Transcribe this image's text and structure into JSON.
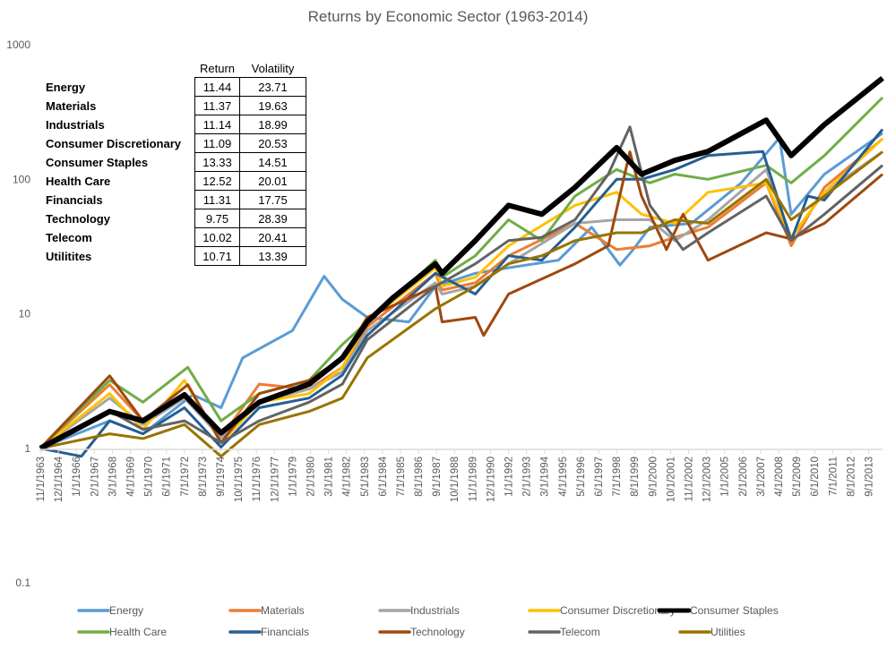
{
  "chart_data": {
    "type": "line",
    "title": "Returns by Economic Sector (1963-2014)",
    "xlabel": "",
    "ylabel": "",
    "yscale": "log",
    "ylim": [
      0.1,
      1000
    ],
    "yticks": [
      "1000",
      "100",
      "10",
      "1",
      "0.1"
    ],
    "ytick_values": [
      1000,
      100,
      10,
      1,
      0.1
    ],
    "xlim": [
      1963.83,
      2014.5
    ],
    "xtick_labels": [
      "11/1/1963",
      "12/1/1964",
      "1/1/1966",
      "2/1/1967",
      "3/1/1968",
      "4/1/1969",
      "5/1/1970",
      "6/1/1971",
      "7/1/1972",
      "8/1/1973",
      "9/1/1974",
      "10/1/1975",
      "11/1/1976",
      "12/1/1977",
      "1/1/1979",
      "2/1/1980",
      "3/1/1981",
      "4/1/1982",
      "5/1/1983",
      "6/1/1984",
      "7/1/1985",
      "8/1/1986",
      "9/1/1987",
      "10/1/1988",
      "11/1/1989",
      "12/1/1990",
      "1/1/1992",
      "2/1/1993",
      "3/1/1994",
      "4/1/1995",
      "5/1/1996",
      "6/1/1997",
      "7/1/1998",
      "8/1/1999",
      "9/1/2000",
      "10/1/2001",
      "11/1/2002",
      "12/1/2003",
      "1/1/2005",
      "2/1/2006",
      "3/1/2007",
      "4/1/2008",
      "5/1/2009",
      "6/1/2010",
      "7/1/2011",
      "8/1/2012",
      "9/1/2013"
    ],
    "legend_position": "bottom",
    "grid": false,
    "series": [
      {
        "name": "Energy",
        "color": "#5B9BD5",
        "x": [
          1963.83,
          1968,
          1970,
          1973,
          1974.7,
          1976,
          1979,
          1980.9,
          1982,
          1983.5,
          1986,
          1987.6,
          1990,
          1992,
          1995,
          1997,
          1998.7,
          1999.5,
          2000.5,
          2003,
          2006,
          2008.3,
          2009,
          2011,
          2014.5
        ],
        "values": [
          1,
          1.6,
          1.28,
          2.5,
          2,
          4.7,
          7.5,
          19,
          12.8,
          9.4,
          8.7,
          16,
          20,
          22,
          25,
          44,
          23,
          30,
          44,
          47,
          94,
          203,
          55,
          109,
          220
        ]
      },
      {
        "name": "Materials",
        "color": "#ED7D31",
        "x": [
          1963.83,
          1968,
          1970,
          1972.5,
          1974.7,
          1977,
          1980,
          1982,
          1983.5,
          1987.6,
          1988,
          1990,
          1992,
          1996,
          1998.5,
          2000.5,
          2002,
          2004,
          2007.5,
          2009,
          2011,
          2014.5
        ],
        "values": [
          1,
          2.97,
          1.6,
          2.5,
          1.2,
          3,
          2.75,
          4,
          8,
          20,
          15,
          17,
          27,
          47,
          30,
          32,
          37,
          44,
          94,
          32,
          87,
          200
        ]
      },
      {
        "name": "Industrials",
        "color": "#A5A5A5",
        "x": [
          1963.83,
          1968,
          1970,
          1972.5,
          1974.7,
          1977,
          1980,
          1982,
          1983.5,
          1987.6,
          1988,
          1990,
          1992,
          1996,
          1998.5,
          2000.5,
          2002,
          2004,
          2007.5,
          2009,
          2011,
          2014.5
        ],
        "values": [
          1,
          2.36,
          1.5,
          2.36,
          1.2,
          2.2,
          2.75,
          3.7,
          7.5,
          17,
          14,
          16,
          23.5,
          47,
          50,
          50,
          35,
          50,
          118,
          37,
          80,
          160
        ]
      },
      {
        "name": "Consumer Discretionary",
        "color": "#FFC000",
        "x": [
          1963.83,
          1968,
          1970,
          1972.5,
          1974.7,
          1977,
          1980,
          1982,
          1983.5,
          1987.6,
          1988,
          1990,
          1992,
          1996,
          1998.5,
          2000,
          2002,
          2004,
          2007.5,
          2009,
          2011,
          2014.5
        ],
        "values": [
          1,
          2.55,
          1.38,
          3.2,
          1.1,
          2.2,
          2.55,
          4,
          8.7,
          22,
          16,
          18.7,
          32,
          64,
          80,
          55,
          47,
          80,
          94,
          37,
          80,
          200
        ]
      },
      {
        "name": "Consumer Staples",
        "color": "#000000",
        "x": [
          1963.83,
          1968,
          1970,
          1972.5,
          1974.7,
          1977,
          1980,
          1982,
          1983.5,
          1985,
          1987.6,
          1988,
          1990,
          1992,
          1994,
          1996,
          1998.5,
          2000,
          2002,
          2004,
          2007.5,
          2009,
          2011,
          2014.5
        ],
        "values": [
          1,
          1.88,
          1.6,
          2.5,
          1.3,
          2.2,
          3,
          4.7,
          8.7,
          13,
          23.5,
          20,
          35,
          64,
          55,
          87,
          172,
          109,
          138,
          161,
          275,
          150,
          255,
          565
        ]
      },
      {
        "name": "Health Care",
        "color": "#70AD47",
        "x": [
          1963.83,
          1968,
          1970,
          1972.7,
          1974.7,
          1977,
          1980,
          1982,
          1983.5,
          1987.6,
          1988,
          1990,
          1992,
          1994,
          1996,
          1998.5,
          2000.5,
          2002,
          2004,
          2007.5,
          2009,
          2011,
          2014.5
        ],
        "values": [
          1,
          3.2,
          2.2,
          4,
          1.6,
          2.55,
          3.2,
          5.9,
          8.7,
          25,
          18.7,
          27,
          50,
          35,
          75,
          118,
          94,
          109,
          100,
          127,
          94,
          150,
          405
        ]
      },
      {
        "name": "Financials",
        "color": "#255E91",
        "x": [
          1963.83,
          1966.3,
          1968,
          1970,
          1972.5,
          1974.7,
          1977,
          1980,
          1982,
          1983.5,
          1987.6,
          1990,
          1992,
          1994,
          1996,
          1998.5,
          2000,
          2002,
          2004,
          2007.3,
          2009,
          2010,
          2011,
          2014.5
        ],
        "values": [
          1,
          0.87,
          1.6,
          1.28,
          2,
          1.02,
          2,
          2.36,
          3.5,
          6.9,
          20,
          14,
          27,
          25,
          44,
          100,
          100,
          118,
          150,
          161,
          35,
          75,
          70,
          235
        ]
      },
      {
        "name": "Technology",
        "color": "#9E480E",
        "x": [
          1963.83,
          1968,
          1970,
          1972.7,
          1974.7,
          1977,
          1980,
          1982,
          1983.5,
          1987.6,
          1988,
          1990,
          1990.5,
          1992,
          1996,
          1998,
          1999.3,
          2000,
          2001.5,
          2002.5,
          2004,
          2007.5,
          2009,
          2011,
          2014.5
        ],
        "values": [
          1,
          3.46,
          1.6,
          2.97,
          1.1,
          2.55,
          3.2,
          4.7,
          9.4,
          16,
          8.7,
          9.4,
          6.9,
          14,
          23.5,
          32,
          160,
          75,
          30,
          55,
          25,
          40,
          36,
          47,
          109
        ]
      },
      {
        "name": "Telecom",
        "color": "#636363",
        "x": [
          1963.83,
          1968,
          1970,
          1972.5,
          1974.7,
          1977,
          1980,
          1982,
          1983.5,
          1987.6,
          1990,
          1992,
          1994,
          1996,
          1998,
          1999.3,
          2000.5,
          2002.5,
          2004,
          2007.5,
          2009,
          2011,
          2014.5
        ],
        "values": [
          1,
          1.9,
          1.38,
          1.6,
          1.1,
          1.6,
          2.2,
          3,
          6.4,
          16,
          23.5,
          35,
          37,
          50,
          109,
          245,
          64,
          30,
          40,
          75,
          35,
          55,
          127
        ]
      },
      {
        "name": "Utilities",
        "color": "#997300",
        "x": [
          1963.83,
          1968,
          1970,
          1972.5,
          1974.7,
          1977,
          1980,
          1982,
          1983.5,
          1987.6,
          1990,
          1992,
          1994,
          1996,
          1998.5,
          2000,
          2002,
          2004,
          2007.5,
          2009,
          2011,
          2014.5
        ],
        "values": [
          1,
          1.28,
          1.18,
          1.5,
          0.87,
          1.5,
          1.88,
          2.36,
          4.7,
          10.9,
          16,
          23.5,
          27,
          35,
          40,
          40,
          50,
          47,
          100,
          50,
          75,
          160
        ]
      }
    ]
  },
  "table": {
    "headers": [
      "Return",
      "Volatility"
    ],
    "rows": [
      {
        "sector": "Energy",
        "return": "11.44",
        "volatility": "23.71"
      },
      {
        "sector": "Materials",
        "return": "11.37",
        "volatility": "19.63"
      },
      {
        "sector": "Industrials",
        "return": "11.14",
        "volatility": "18.99"
      },
      {
        "sector": "Consumer Discretionary",
        "return": "11.09",
        "volatility": "20.53"
      },
      {
        "sector": "Consumer Staples",
        "return": "13.33",
        "volatility": "14.51"
      },
      {
        "sector": "Health Care",
        "return": "12.52",
        "volatility": "20.01"
      },
      {
        "sector": "Financials",
        "return": "11.31",
        "volatility": "17.75"
      },
      {
        "sector": "Technology",
        "return": "9.75",
        "volatility": "28.39"
      },
      {
        "sector": "Telecom",
        "return": "10.02",
        "volatility": "20.41"
      },
      {
        "sector": "Utilitites",
        "return": "10.71",
        "volatility": "13.39"
      }
    ]
  },
  "legend": [
    "Energy",
    "Materials",
    "Industrials",
    "Consumer Discretionary",
    "Consumer Staples",
    "Health Care",
    "Financials",
    "Technology",
    "Telecom",
    "Utilities"
  ]
}
